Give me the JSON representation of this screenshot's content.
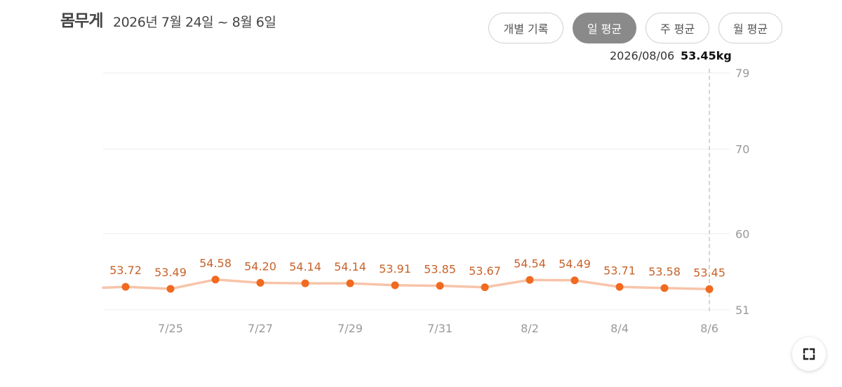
{
  "header": {
    "title": "몸무게",
    "date_range": "2026년 7월 24일 ~ 8월 6일"
  },
  "view_toggles": [
    {
      "label": "개별 기록",
      "active": false
    },
    {
      "label": "일 평균",
      "active": true
    },
    {
      "label": "주 평균",
      "active": false
    },
    {
      "label": "월 평균",
      "active": false
    }
  ],
  "readout": {
    "date": "2026/08/06",
    "value": "53.45kg"
  },
  "colors": {
    "line": "#f7c4a9",
    "point": "#f06a1f",
    "data_label": "#c8622a",
    "grid": "#ececec",
    "axis_text": "#999999",
    "cursor_line": "#d8cbb5",
    "active_toggle": "#8a8a8a"
  },
  "fullscreen_icon": "expand-icon",
  "chart_data": {
    "type": "line",
    "x": [
      "7/24",
      "7/25",
      "7/26",
      "7/27",
      "7/28",
      "7/29",
      "7/30",
      "7/31",
      "8/1",
      "8/2",
      "8/3",
      "8/4",
      "8/5",
      "8/6"
    ],
    "x_tick_labels": [
      "7/25",
      "7/27",
      "7/29",
      "7/31",
      "8/2",
      "8/4",
      "8/6"
    ],
    "values": [
      53.72,
      53.49,
      54.58,
      54.2,
      54.14,
      54.14,
      53.91,
      53.85,
      53.67,
      54.54,
      54.49,
      53.71,
      53.58,
      53.45
    ],
    "value_labels": [
      "53.72",
      "53.49",
      "54.58",
      "54.20",
      "54.14",
      "54.14",
      "53.91",
      "53.85",
      "53.67",
      "54.54",
      "54.49",
      "53.71",
      "53.58",
      "53.45"
    ],
    "y_ticks": [
      51,
      60,
      70,
      79
    ],
    "ylim": [
      51,
      79
    ],
    "y_axis_position": "right",
    "line_extends_left": true,
    "grid": true,
    "highlighted_point": "8/6",
    "title": "",
    "xlabel": "",
    "ylabel": ""
  }
}
